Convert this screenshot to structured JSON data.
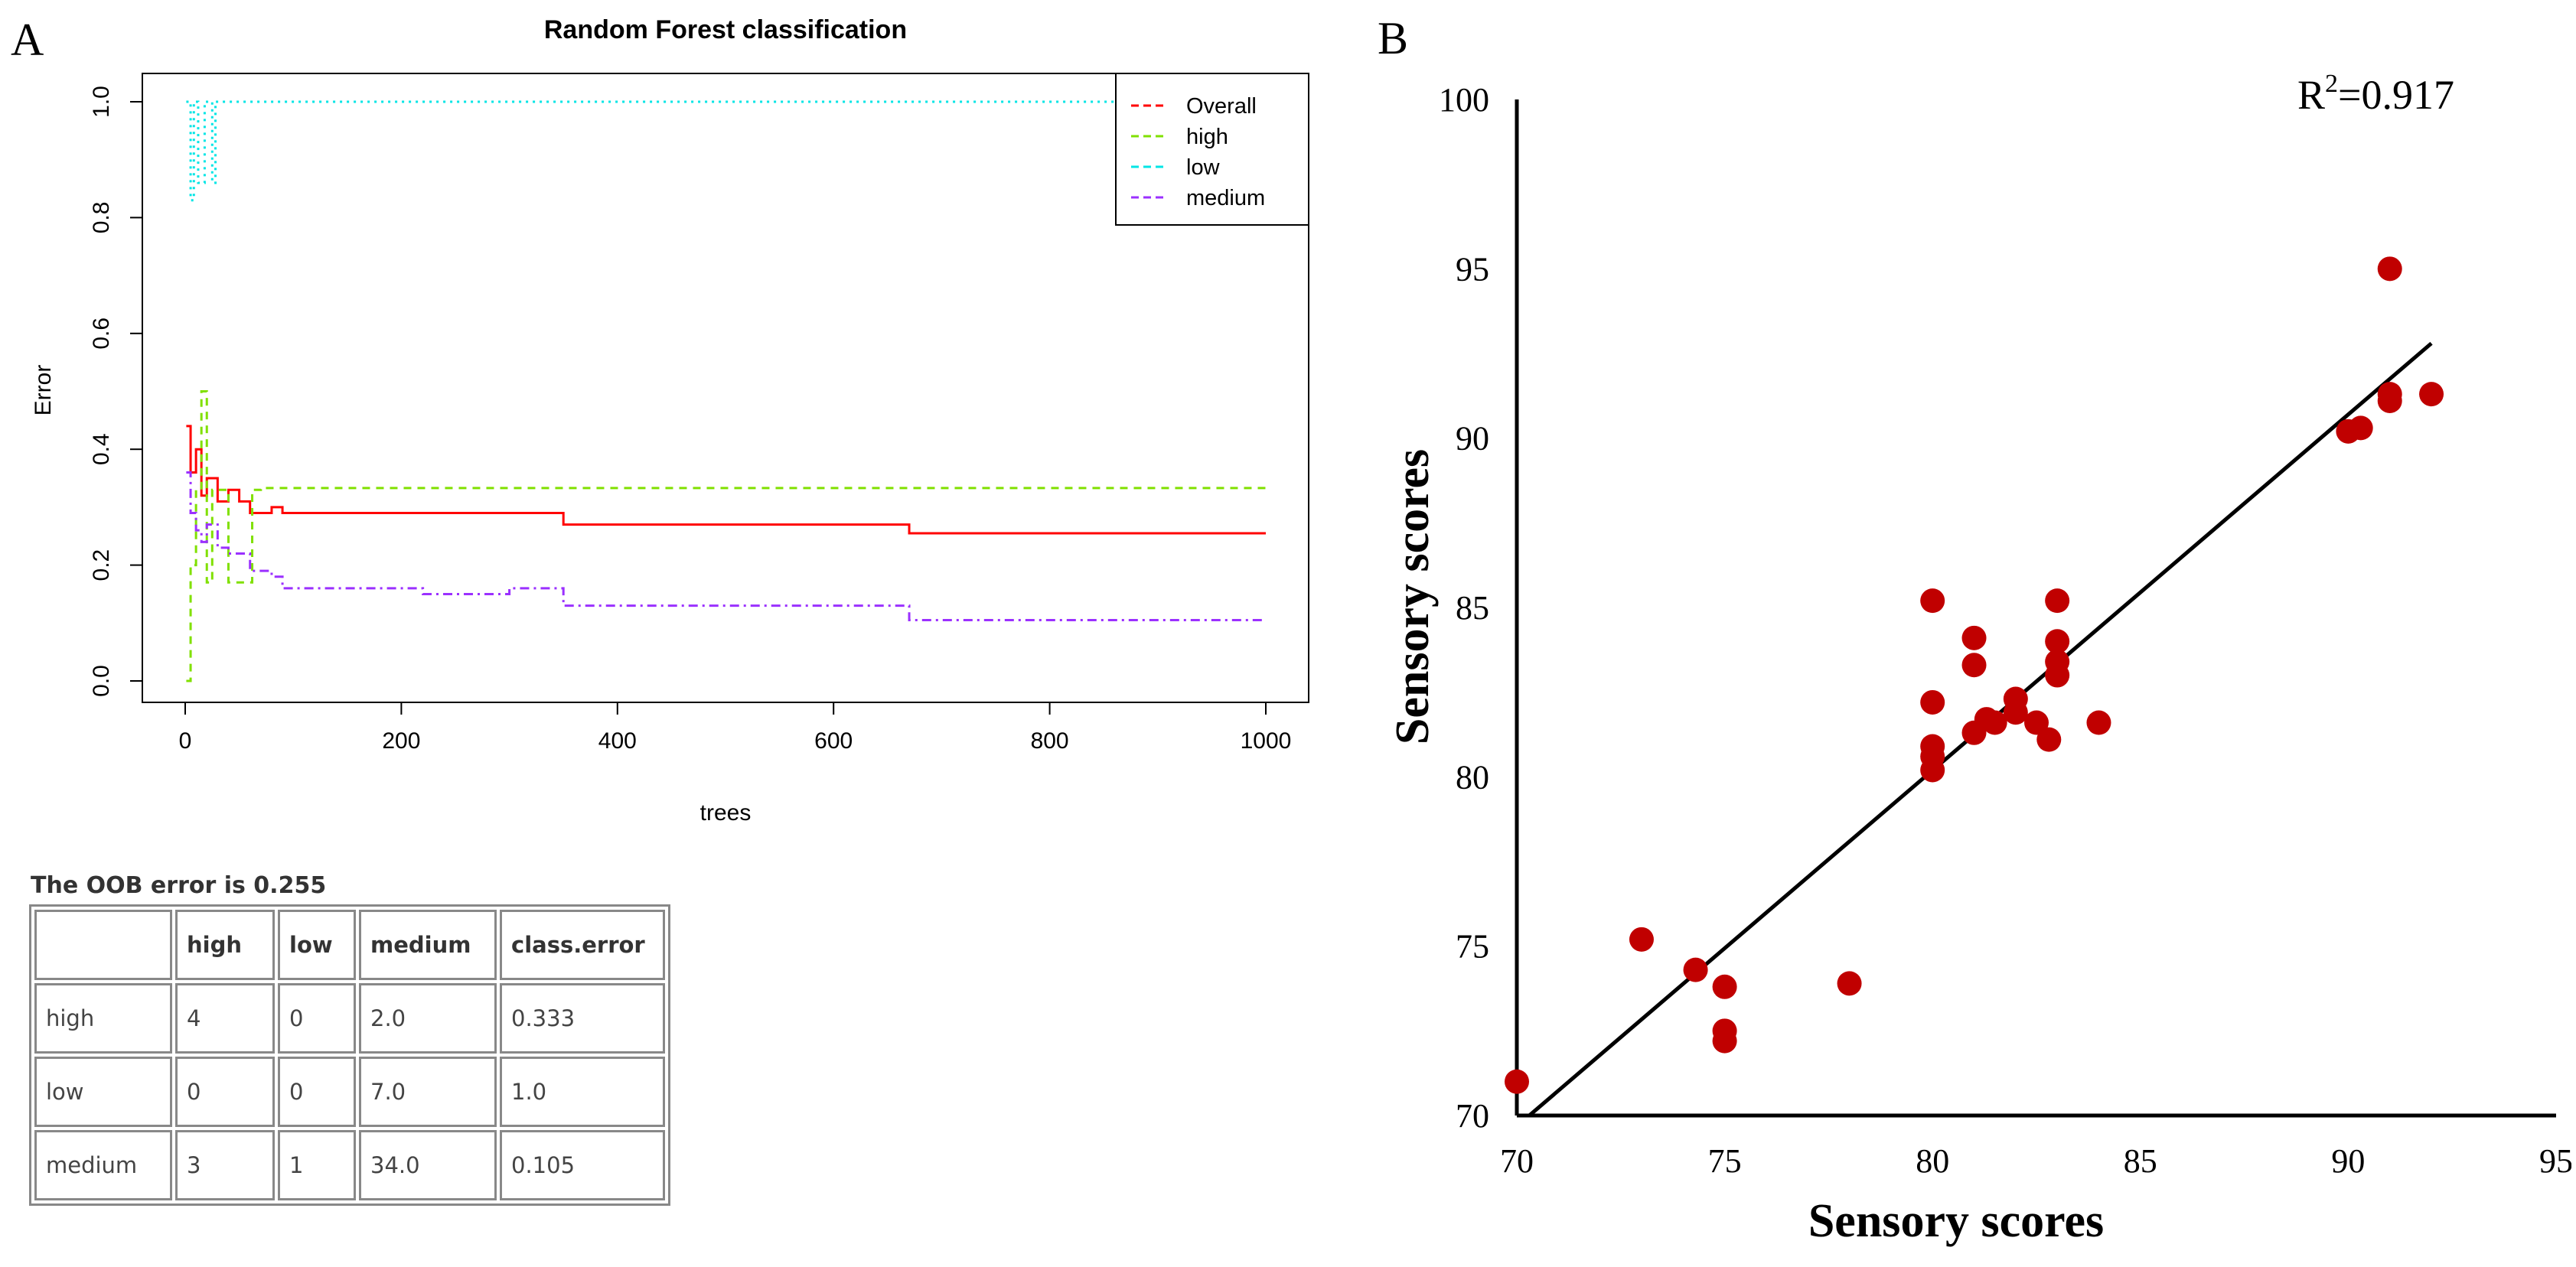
{
  "panel_a": {
    "letter": "A",
    "chart_data": {
      "type": "line",
      "title": "Random Forest classification",
      "xlabel": "trees",
      "ylabel": "Error",
      "xlim": [
        0,
        1000
      ],
      "ylim": [
        0,
        1.0
      ],
      "x_ticks": [
        "0",
        "200",
        "400",
        "600",
        "800",
        "1000"
      ],
      "y_ticks": [
        "0.0",
        "0.2",
        "0.4",
        "0.6",
        "0.8",
        "1.0"
      ],
      "legend_position": "top-right",
      "series": [
        {
          "name": "Overall",
          "color": "#ff0000",
          "dash": "solid",
          "x": [
            1,
            5,
            10,
            15,
            20,
            30,
            40,
            50,
            60,
            70,
            80,
            90,
            150,
            200,
            300,
            350,
            500,
            600,
            670,
            1000
          ],
          "y": [
            0.44,
            0.36,
            0.4,
            0.32,
            0.35,
            0.31,
            0.33,
            0.31,
            0.29,
            0.29,
            0.3,
            0.29,
            0.29,
            0.29,
            0.29,
            0.27,
            0.27,
            0.27,
            0.255,
            0.255
          ]
        },
        {
          "name": "high",
          "color": "#80e000",
          "dash": "dashed",
          "x": [
            1,
            5,
            10,
            15,
            20,
            25,
            40,
            55,
            62,
            70,
            200,
            600,
            1000
          ],
          "y": [
            0.0,
            0.2,
            0.33,
            0.5,
            0.17,
            0.33,
            0.17,
            0.17,
            0.33,
            0.333,
            0.333,
            0.333,
            0.333
          ]
        },
        {
          "name": "low",
          "color": "#00e5e5",
          "dash": "dotted",
          "x": [
            1,
            5,
            8,
            12,
            18,
            25,
            28,
            35,
            100,
            500,
            1000
          ],
          "y": [
            1.0,
            0.83,
            1.0,
            0.86,
            1.0,
            0.86,
            1.0,
            1.0,
            1.0,
            1.0,
            1.0
          ]
        },
        {
          "name": "medium",
          "color": "#9b30ff",
          "dash": "dashdot",
          "x": [
            1,
            5,
            10,
            15,
            20,
            30,
            40,
            60,
            80,
            90,
            150,
            220,
            300,
            350,
            500,
            600,
            670,
            1000
          ],
          "y": [
            0.36,
            0.29,
            0.26,
            0.24,
            0.27,
            0.23,
            0.22,
            0.19,
            0.18,
            0.16,
            0.16,
            0.15,
            0.16,
            0.13,
            0.13,
            0.13,
            0.105,
            0.105
          ]
        }
      ]
    },
    "oob_caption": "The OOB error is 0.255",
    "confusion_table": {
      "headers": [
        "",
        "high",
        "low",
        "medium",
        "class.error"
      ],
      "rows": [
        [
          "high",
          "4",
          "0",
          "2.0",
          "0.333"
        ],
        [
          "low",
          "0",
          "0",
          "7.0",
          "1.0"
        ],
        [
          "medium",
          "3",
          "1",
          "34.0",
          "0.105"
        ]
      ]
    }
  },
  "panel_b": {
    "letter": "B",
    "r2_label": "R²=0.917",
    "chart_data": {
      "type": "scatter",
      "xlabel": "Sensory scores",
      "ylabel": "Sensory scores",
      "xlim": [
        70,
        95
      ],
      "ylim": [
        70,
        100
      ],
      "x_ticks": [
        "70",
        "75",
        "80",
        "85",
        "90",
        "95"
      ],
      "y_ticks": [
        "70",
        "75",
        "80",
        "85",
        "90",
        "95",
        "100"
      ],
      "point_color": "#c00000",
      "points": [
        [
          70,
          71.0
        ],
        [
          73,
          75.2
        ],
        [
          74.3,
          74.3
        ],
        [
          75,
          73.8
        ],
        [
          75,
          72.5
        ],
        [
          75,
          72.2
        ],
        [
          78,
          73.9
        ],
        [
          80,
          85.2
        ],
        [
          80,
          82.2
        ],
        [
          80,
          80.9
        ],
        [
          80,
          80.6
        ],
        [
          80,
          80.2
        ],
        [
          81,
          84.1
        ],
        [
          81,
          83.3
        ],
        [
          81,
          81.3
        ],
        [
          81.3,
          81.7
        ],
        [
          81.5,
          81.6
        ],
        [
          82,
          82.3
        ],
        [
          82,
          81.9
        ],
        [
          82.5,
          81.6
        ],
        [
          82.8,
          81.1
        ],
        [
          83,
          85.2
        ],
        [
          83,
          84.0
        ],
        [
          83,
          83.4
        ],
        [
          83,
          83.0
        ],
        [
          84,
          81.6
        ],
        [
          90,
          90.2
        ],
        [
          90.3,
          90.3
        ],
        [
          91,
          95.0
        ],
        [
          91,
          91.3
        ],
        [
          91,
          91.1
        ],
        [
          92,
          91.3
        ]
      ],
      "fit_line": {
        "x": [
          70.3,
          92
        ],
        "y": [
          70,
          92.8
        ]
      },
      "r_squared": 0.917
    }
  }
}
